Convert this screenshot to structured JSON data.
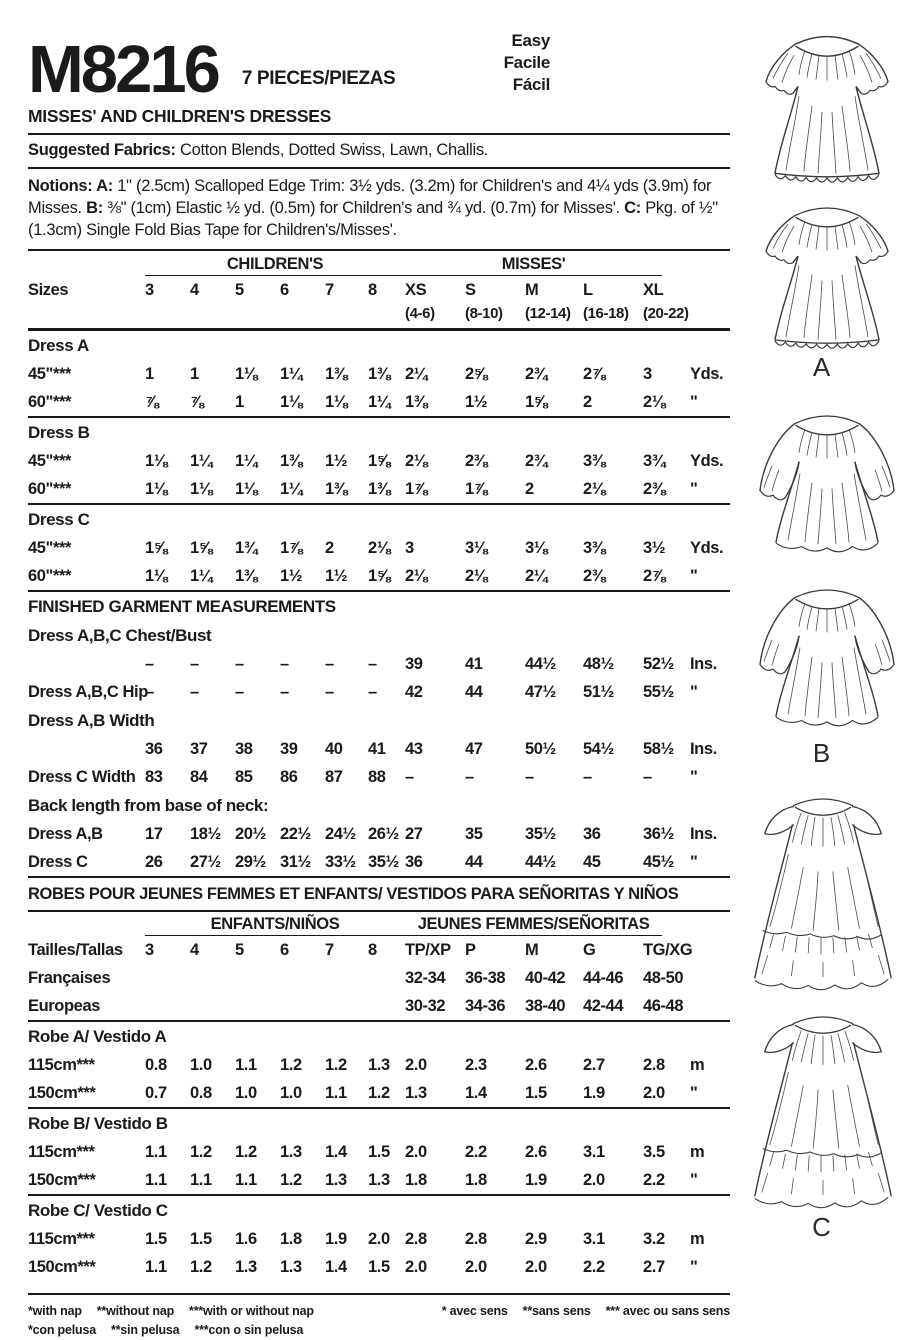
{
  "header": {
    "pattern_number": "M8216",
    "pieces": "7 PIECES/PIEZAS",
    "difficulty": [
      "Easy",
      "Facile",
      "Fácil"
    ],
    "title": "MISSES' AND CHILDREN'S DRESSES"
  },
  "fabrics": {
    "label": "Suggested Fabrics:",
    "text": " Cotton Blends, Dotted Swiss, Lawn, Challis."
  },
  "notions": [
    {
      "bold": "Notions: A:",
      "text": " 1\" (2.5cm) Scalloped Edge Trim: 3½ yds. (3.2m) for Children's and 4¼ yds (3.9m) for Misses. "
    },
    {
      "bold": "B:",
      "text": " ⅜\" (1cm) Elastic ½ yd. (0.5m) for Children's and ¾ yd. (0.7m) for Misses'. "
    },
    {
      "bold": "C:",
      "text": " Pkg. of ½\" (1.3cm) Single Fold Bias Tape for Children's/Misses'."
    }
  ],
  "table": {
    "rows": [
      {
        "type": "groups",
        "children": "CHILDREN'S",
        "misses": "MISSES'"
      },
      {
        "type": "sizes",
        "label": "Sizes",
        "children": [
          "3",
          "4",
          "5",
          "6",
          "7",
          "8"
        ],
        "misses": [
          "XS",
          "S",
          "M",
          "L",
          "XL"
        ]
      },
      {
        "type": "ranges",
        "misses": [
          "(4-6)",
          "(8-10)",
          "(12-14)",
          "(16-18)",
          "(20-22)"
        ],
        "rule": "thick"
      },
      {
        "type": "section",
        "label": "Dress A"
      },
      {
        "type": "data",
        "label": "45\"***",
        "values": [
          "1",
          "1",
          "1⅛",
          "1¼",
          "1⅜",
          "1⅜",
          "2¼",
          "2⅝",
          "2¾",
          "2⅞",
          "3"
        ],
        "unit": "Yds."
      },
      {
        "type": "data",
        "label": "60\"***",
        "values": [
          "⅞",
          "⅞",
          "1",
          "1⅛",
          "1⅛",
          "1¼",
          "1⅜",
          "1½",
          "1⅝",
          "2",
          "2⅛"
        ],
        "unit": "\"",
        "rule": true
      },
      {
        "type": "section",
        "label": "Dress B"
      },
      {
        "type": "data",
        "label": "45\"***",
        "values": [
          "1⅛",
          "1¼",
          "1¼",
          "1⅜",
          "1½",
          "1⅝",
          "2⅛",
          "2⅜",
          "2¾",
          "3⅜",
          "3¾"
        ],
        "unit": "Yds."
      },
      {
        "type": "data",
        "label": "60\"***",
        "values": [
          "1⅛",
          "1⅛",
          "1⅛",
          "1¼",
          "1⅜",
          "1⅜",
          "1⅞",
          "1⅞",
          "2",
          "2⅛",
          "2⅜"
        ],
        "unit": "\"",
        "rule": true
      },
      {
        "type": "section",
        "label": "Dress C"
      },
      {
        "type": "data",
        "label": "45\"***",
        "values": [
          "1⅝",
          "1⅝",
          "1¾",
          "1⅞",
          "2",
          "2⅛",
          "3",
          "3⅛",
          "3⅛",
          "3⅜",
          "3½"
        ],
        "unit": "Yds."
      },
      {
        "type": "data",
        "label": "60\"***",
        "values": [
          "1⅛",
          "1¼",
          "1⅜",
          "1½",
          "1½",
          "1⅝",
          "2⅛",
          "2⅛",
          "2¼",
          "2⅜",
          "2⅞"
        ],
        "unit": "\"",
        "rule": true
      },
      {
        "type": "section",
        "label": "FINISHED GARMENT MEASUREMENTS"
      },
      {
        "type": "section",
        "label": "Dress A,B,C Chest/Bust"
      },
      {
        "type": "data",
        "label": "",
        "values": [
          "–",
          "–",
          "–",
          "–",
          "–",
          "–",
          "39",
          "41",
          "44½",
          "48½",
          "52½"
        ],
        "unit": "Ins."
      },
      {
        "type": "data",
        "label": "Dress A,B,C Hip",
        "values": [
          "–",
          "–",
          "–",
          "–",
          "–",
          "–",
          "42",
          "44",
          "47½",
          "51½",
          "55½"
        ],
        "unit": "\""
      },
      {
        "type": "section",
        "label": "Dress A,B Width"
      },
      {
        "type": "data",
        "label": "",
        "values": [
          "36",
          "37",
          "38",
          "39",
          "40",
          "41",
          "43",
          "47",
          "50½",
          "54½",
          "58½"
        ],
        "unit": "Ins."
      },
      {
        "type": "data",
        "label": "Dress C Width",
        "values": [
          "83",
          "84",
          "85",
          "86",
          "87",
          "88",
          "–",
          "–",
          "–",
          "–",
          "–"
        ],
        "unit": "\""
      },
      {
        "type": "section",
        "label": "Back length from base of neck:"
      },
      {
        "type": "data",
        "label": "Dress A,B",
        "values": [
          "17",
          "18½",
          "20½",
          "22½",
          "24½",
          "26½",
          "27",
          "35",
          "35½",
          "36",
          "36½"
        ],
        "unit": "Ins."
      },
      {
        "type": "data",
        "label": "Dress C",
        "values": [
          "26",
          "27½",
          "29½",
          "31½",
          "33½",
          "35½",
          "36",
          "44",
          "44½",
          "45",
          "45½"
        ],
        "unit": "\"",
        "rule": true
      },
      {
        "type": "banner",
        "label": "ROBES POUR JEUNES FEMMES ET ENFANTS/ VESTIDOS PARA SEÑORITAS Y NIÑOS",
        "rule": true
      },
      {
        "type": "groups",
        "children": "ENFANTS/NIÑOS",
        "misses": "JEUNES FEMMES/SEÑORITAS"
      },
      {
        "type": "sizes",
        "label": "Tailles/Tallas",
        "children": [
          "3",
          "4",
          "5",
          "6",
          "7",
          "8"
        ],
        "misses": [
          "TP/XP",
          "P",
          "M",
          "G",
          "TG/XG"
        ]
      },
      {
        "type": "data",
        "label": "Françaises",
        "values": [
          "",
          "",
          "",
          "",
          "",
          "",
          "32-34",
          "36-38",
          "40-42",
          "44-46",
          "48-50"
        ],
        "unit": ""
      },
      {
        "type": "data",
        "label": "Europeas",
        "values": [
          "",
          "",
          "",
          "",
          "",
          "",
          "30-32",
          "34-36",
          "38-40",
          "42-44",
          "46-48"
        ],
        "unit": "",
        "rule": true
      },
      {
        "type": "section",
        "label": "Robe A/ Vestido A"
      },
      {
        "type": "data",
        "label": "115cm***",
        "values": [
          "0.8",
          "1.0",
          "1.1",
          "1.2",
          "1.2",
          "1.3",
          "2.0",
          "2.3",
          "2.6",
          "2.7",
          "2.8"
        ],
        "unit": "m"
      },
      {
        "type": "data",
        "label": "150cm***",
        "values": [
          "0.7",
          "0.8",
          "1.0",
          "1.0",
          "1.1",
          "1.2",
          "1.3",
          "1.4",
          "1.5",
          "1.9",
          "2.0"
        ],
        "unit": "\"",
        "rule": true
      },
      {
        "type": "section",
        "label": "Robe B/ Vestido B"
      },
      {
        "type": "data",
        "label": "115cm***",
        "values": [
          "1.1",
          "1.2",
          "1.2",
          "1.3",
          "1.4",
          "1.5",
          "2.0",
          "2.2",
          "2.6",
          "3.1",
          "3.5"
        ],
        "unit": "m"
      },
      {
        "type": "data",
        "label": "150cm***",
        "values": [
          "1.1",
          "1.1",
          "1.1",
          "1.2",
          "1.3",
          "1.3",
          "1.8",
          "1.8",
          "1.9",
          "2.0",
          "2.2"
        ],
        "unit": "\"",
        "rule": true
      },
      {
        "type": "section",
        "label": "Robe C/ Vestido C"
      },
      {
        "type": "data",
        "label": "115cm***",
        "values": [
          "1.5",
          "1.5",
          "1.6",
          "1.8",
          "1.9",
          "2.0",
          "2.8",
          "2.8",
          "2.9",
          "3.1",
          "3.2"
        ],
        "unit": "m"
      },
      {
        "type": "data",
        "label": "150cm***",
        "values": [
          "1.1",
          "1.2",
          "1.3",
          "1.3",
          "1.4",
          "1.5",
          "2.0",
          "2.0",
          "2.0",
          "2.2",
          "2.7"
        ],
        "unit": "\"",
        "rule": "gap"
      }
    ]
  },
  "footnotes": {
    "english": [
      "*with nap",
      "**without nap",
      "***with or without nap"
    ],
    "spanish": [
      "*con pelusa",
      "**sin pelusa",
      "***con o sin pelusa"
    ],
    "french": [
      "* avec sens",
      "**sans sens",
      "*** avec ou sans sens"
    ]
  },
  "figures": {
    "a_label": "A",
    "b_label": "B",
    "c_label": "C"
  }
}
